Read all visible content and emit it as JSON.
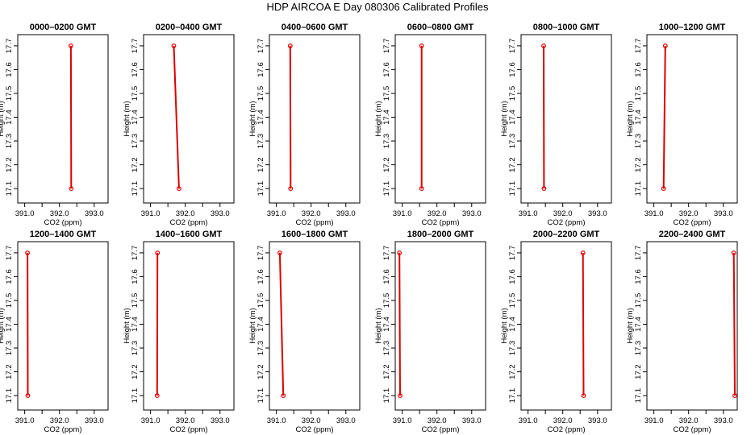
{
  "title": "HDP AIRCOA E  Day 080306  Calibrated Profiles",
  "chart_data": [
    {
      "type": "line",
      "title": "0000–0200 GMT",
      "xlabel": "CO2 (ppm)",
      "ylabel": "Height (m)",
      "xlim": [
        390.8,
        393.4
      ],
      "ylim": [
        17.08,
        17.72
      ],
      "xticks": [
        "391.0",
        "392.0",
        "393.0"
      ],
      "yticks": [
        "17.1",
        "17.2",
        "17.3",
        "17.4",
        "17.5",
        "17.6",
        "17.7"
      ],
      "series": [
        {
          "x": [
            392.33,
            392.34
          ],
          "y": [
            17.7,
            17.1
          ]
        }
      ]
    },
    {
      "type": "line",
      "title": "0200–0400 GMT",
      "xlabel": "CO2 (ppm)",
      "ylabel": "Height (m)",
      "xlim": [
        390.8,
        393.4
      ],
      "ylim": [
        17.08,
        17.72
      ],
      "xticks": [
        "391.0",
        "392.0",
        "393.0"
      ],
      "yticks": [
        "17.1",
        "17.2",
        "17.3",
        "17.4",
        "17.5",
        "17.6",
        "17.7"
      ],
      "series": [
        {
          "x": [
            391.67,
            391.82
          ],
          "y": [
            17.7,
            17.1
          ]
        }
      ]
    },
    {
      "type": "line",
      "title": "0400–0600 GMT",
      "xlabel": "CO2 (ppm)",
      "ylabel": "Height (m)",
      "xlim": [
        390.8,
        393.4
      ],
      "ylim": [
        17.08,
        17.72
      ],
      "xticks": [
        "391.0",
        "392.0",
        "393.0"
      ],
      "yticks": [
        "17.1",
        "17.2",
        "17.3",
        "17.4",
        "17.5",
        "17.6",
        "17.7"
      ],
      "series": [
        {
          "x": [
            391.4,
            391.41
          ],
          "y": [
            17.7,
            17.1
          ]
        }
      ]
    },
    {
      "type": "line",
      "title": "0600–0800 GMT",
      "xlabel": "CO2 (ppm)",
      "ylabel": "Height (m)",
      "xlim": [
        390.8,
        393.4
      ],
      "ylim": [
        17.08,
        17.72
      ],
      "xticks": [
        "391.0",
        "392.0",
        "393.0"
      ],
      "yticks": [
        "17.1",
        "17.2",
        "17.3",
        "17.4",
        "17.5",
        "17.6",
        "17.7"
      ],
      "series": [
        {
          "x": [
            391.56,
            391.56
          ],
          "y": [
            17.7,
            17.1
          ]
        }
      ]
    },
    {
      "type": "line",
      "title": "0800–1000 GMT",
      "xlabel": "CO2 (ppm)",
      "ylabel": "Height (m)",
      "xlim": [
        390.8,
        393.4
      ],
      "ylim": [
        17.08,
        17.72
      ],
      "xticks": [
        "391.0",
        "392.0",
        "393.0"
      ],
      "yticks": [
        "17.1",
        "17.2",
        "17.3",
        "17.4",
        "17.5",
        "17.6",
        "17.7"
      ],
      "series": [
        {
          "x": [
            391.45,
            391.46
          ],
          "y": [
            17.7,
            17.1
          ]
        }
      ]
    },
    {
      "type": "line",
      "title": "1000–1200 GMT",
      "xlabel": "CO2 (ppm)",
      "ylabel": "Height (m)",
      "xlim": [
        390.8,
        393.4
      ],
      "ylim": [
        17.08,
        17.72
      ],
      "xticks": [
        "391.0",
        "392.0",
        "393.0"
      ],
      "yticks": [
        "17.1",
        "17.2",
        "17.3",
        "17.4",
        "17.5",
        "17.6",
        "17.7"
      ],
      "series": [
        {
          "x": [
            391.33,
            391.28
          ],
          "y": [
            17.7,
            17.1
          ]
        }
      ]
    },
    {
      "type": "line",
      "title": "1200–1400 GMT",
      "xlabel": "CO2 (ppm)",
      "ylabel": "Height (m)",
      "xlim": [
        390.8,
        393.4
      ],
      "ylim": [
        17.08,
        17.72
      ],
      "xticks": [
        "391.0",
        "392.0",
        "393.0"
      ],
      "yticks": [
        "17.1",
        "17.2",
        "17.3",
        "17.4",
        "17.5",
        "17.6",
        "17.7"
      ],
      "series": [
        {
          "x": [
            391.08,
            391.09
          ],
          "y": [
            17.7,
            17.1
          ]
        }
      ]
    },
    {
      "type": "line",
      "title": "1400–1600 GMT",
      "xlabel": "CO2 (ppm)",
      "ylabel": "Height (m)",
      "xlim": [
        390.8,
        393.4
      ],
      "ylim": [
        17.08,
        17.72
      ],
      "xticks": [
        "391.0",
        "392.0",
        "393.0"
      ],
      "yticks": [
        "17.1",
        "17.2",
        "17.3",
        "17.4",
        "17.5",
        "17.6",
        "17.7"
      ],
      "series": [
        {
          "x": [
            391.2,
            391.19
          ],
          "y": [
            17.7,
            17.1
          ]
        }
      ]
    },
    {
      "type": "line",
      "title": "1600–1800 GMT",
      "xlabel": "CO2 (ppm)",
      "ylabel": "Height (m)",
      "xlim": [
        390.8,
        393.4
      ],
      "ylim": [
        17.08,
        17.72
      ],
      "xticks": [
        "391.0",
        "392.0",
        "393.0"
      ],
      "yticks": [
        "17.1",
        "17.2",
        "17.3",
        "17.4",
        "17.5",
        "17.6",
        "17.7"
      ],
      "series": [
        {
          "x": [
            391.1,
            391.2
          ],
          "y": [
            17.7,
            17.1
          ]
        }
      ]
    },
    {
      "type": "line",
      "title": "1800–2000 GMT",
      "xlabel": "CO2 (ppm)",
      "ylabel": "Height (m)",
      "xlim": [
        390.8,
        393.4
      ],
      "ylim": [
        17.08,
        17.72
      ],
      "xticks": [
        "391.0",
        "392.0",
        "393.0"
      ],
      "yticks": [
        "17.1",
        "17.2",
        "17.3",
        "17.4",
        "17.5",
        "17.6",
        "17.7"
      ],
      "series": [
        {
          "x": [
            390.92,
            390.94
          ],
          "y": [
            17.7,
            17.1
          ]
        }
      ]
    },
    {
      "type": "line",
      "title": "2000–2200 GMT",
      "xlabel": "CO2 (ppm)",
      "ylabel": "Height (m)",
      "xlim": [
        390.8,
        393.4
      ],
      "ylim": [
        17.08,
        17.72
      ],
      "xticks": [
        "391.0",
        "392.0",
        "393.0"
      ],
      "yticks": [
        "17.1",
        "17.2",
        "17.3",
        "17.4",
        "17.5",
        "17.6",
        "17.7"
      ],
      "series": [
        {
          "x": [
            392.58,
            392.6
          ],
          "y": [
            17.7,
            17.1
          ]
        }
      ]
    },
    {
      "type": "line",
      "title": "2200–2400 GMT",
      "xlabel": "CO2 (ppm)",
      "ylabel": "Height (m)",
      "xlim": [
        390.8,
        393.4
      ],
      "ylim": [
        17.08,
        17.72
      ],
      "xticks": [
        "391.0",
        "392.0",
        "393.0"
      ],
      "yticks": [
        "17.1",
        "17.2",
        "17.3",
        "17.4",
        "17.5",
        "17.6",
        "17.7"
      ],
      "series": [
        {
          "x": [
            393.3,
            393.33
          ],
          "y": [
            17.7,
            17.1
          ]
        }
      ]
    }
  ]
}
